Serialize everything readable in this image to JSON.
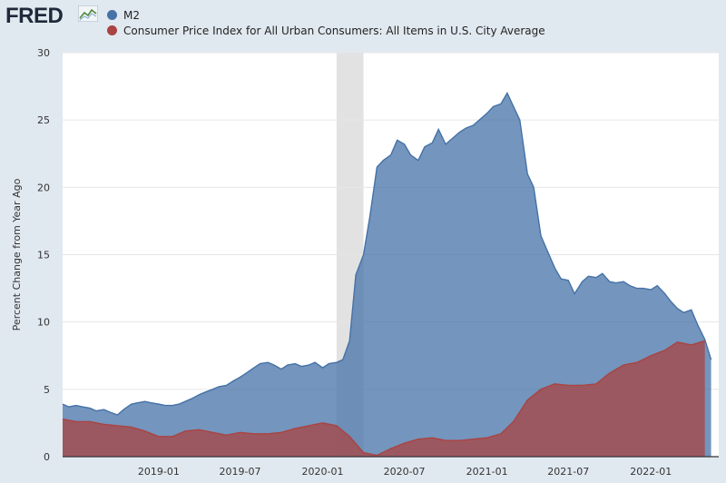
{
  "brand": {
    "name": "FRED"
  },
  "chart_data": {
    "type": "area",
    "title": "",
    "xlabel": "",
    "ylabel": "Percent Change from Year Ago",
    "ylim": [
      0,
      30
    ],
    "yticks": [
      0,
      5,
      10,
      15,
      20,
      25,
      30
    ],
    "xlim": [
      "2018-06-01",
      "2022-06-01"
    ],
    "xticks": [
      "2019-01",
      "2019-07",
      "2020-01",
      "2020-07",
      "2021-01",
      "2021-07",
      "2022-01"
    ],
    "grid": true,
    "legend": "top-left",
    "recession_shading": [
      "2020-02-01",
      "2020-04-01"
    ],
    "series": [
      {
        "name": "M2",
        "color": "#4572a7",
        "x": [
          "2018-06-01",
          "2018-06-15",
          "2018-07-01",
          "2018-07-15",
          "2018-08-01",
          "2018-08-15",
          "2018-09-01",
          "2018-09-15",
          "2018-10-01",
          "2018-10-15",
          "2018-11-01",
          "2018-11-15",
          "2018-12-01",
          "2018-12-15",
          "2019-01-01",
          "2019-01-15",
          "2019-02-01",
          "2019-02-15",
          "2019-03-01",
          "2019-03-15",
          "2019-04-01",
          "2019-04-15",
          "2019-05-01",
          "2019-05-15",
          "2019-06-01",
          "2019-06-15",
          "2019-07-01",
          "2019-07-15",
          "2019-08-01",
          "2019-08-15",
          "2019-09-01",
          "2019-09-15",
          "2019-10-01",
          "2019-10-15",
          "2019-11-01",
          "2019-11-15",
          "2019-12-01",
          "2019-12-15",
          "2020-01-01",
          "2020-01-15",
          "2020-02-01",
          "2020-02-15",
          "2020-03-01",
          "2020-03-15",
          "2020-04-01",
          "2020-04-15",
          "2020-05-01",
          "2020-05-15",
          "2020-06-01",
          "2020-06-15",
          "2020-07-01",
          "2020-07-15",
          "2020-08-01",
          "2020-08-15",
          "2020-09-01",
          "2020-09-15",
          "2020-10-01",
          "2020-10-15",
          "2020-11-01",
          "2020-11-15",
          "2020-12-01",
          "2020-12-15",
          "2021-01-01",
          "2021-01-15",
          "2021-02-01",
          "2021-02-15",
          "2021-03-01",
          "2021-03-15",
          "2021-04-01",
          "2021-04-15",
          "2021-05-01",
          "2021-05-15",
          "2021-06-01",
          "2021-06-15",
          "2021-07-01",
          "2021-07-15",
          "2021-08-01",
          "2021-08-15",
          "2021-09-01",
          "2021-09-15",
          "2021-10-01",
          "2021-10-15",
          "2021-11-01",
          "2021-11-15",
          "2021-12-01",
          "2021-12-15",
          "2022-01-01",
          "2022-01-15",
          "2022-02-01",
          "2022-02-15",
          "2022-03-01",
          "2022-03-15",
          "2022-04-01",
          "2022-04-15",
          "2022-05-01",
          "2022-05-15"
        ],
        "values": [
          3.9,
          3.7,
          3.8,
          3.7,
          3.6,
          3.4,
          3.5,
          3.3,
          3.1,
          3.5,
          3.9,
          4.0,
          4.1,
          4.0,
          3.9,
          3.8,
          3.8,
          3.9,
          4.1,
          4.3,
          4.6,
          4.8,
          5.0,
          5.2,
          5.3,
          5.6,
          5.9,
          6.2,
          6.6,
          6.9,
          7.0,
          6.8,
          6.5,
          6.8,
          6.9,
          6.7,
          6.8,
          7.0,
          6.6,
          6.9,
          7.0,
          7.2,
          8.6,
          13.5,
          15.0,
          17.8,
          21.5,
          22.0,
          22.4,
          23.5,
          23.2,
          22.4,
          22.0,
          23.0,
          23.3,
          24.3,
          23.2,
          23.6,
          24.1,
          24.4,
          24.6,
          25.0,
          25.5,
          26.0,
          26.2,
          27.0,
          26.0,
          25.0,
          21.0,
          20.0,
          16.4,
          15.3,
          14.0,
          13.2,
          13.1,
          12.1,
          13.0,
          13.4,
          13.3,
          13.6,
          13.0,
          12.9,
          13.0,
          12.7,
          12.5,
          12.5,
          12.4,
          12.7,
          12.1,
          11.5,
          11.0,
          10.7,
          10.9,
          9.8,
          8.7,
          7.2
        ]
      },
      {
        "name": "Consumer Price Index for All Urban Consumers: All Items in U.S. City Average",
        "color": "#a94442",
        "x": [
          "2018-06-01",
          "2018-07-01",
          "2018-08-01",
          "2018-09-01",
          "2018-10-01",
          "2018-11-01",
          "2018-12-01",
          "2019-01-01",
          "2019-02-01",
          "2019-03-01",
          "2019-04-01",
          "2019-05-01",
          "2019-06-01",
          "2019-07-01",
          "2019-08-01",
          "2019-09-01",
          "2019-10-01",
          "2019-11-01",
          "2019-12-01",
          "2020-01-01",
          "2020-02-01",
          "2020-03-01",
          "2020-04-01",
          "2020-05-01",
          "2020-06-01",
          "2020-07-01",
          "2020-08-01",
          "2020-09-01",
          "2020-10-01",
          "2020-11-01",
          "2020-12-01",
          "2021-01-01",
          "2021-02-01",
          "2021-03-01",
          "2021-04-01",
          "2021-05-01",
          "2021-06-01",
          "2021-07-01",
          "2021-08-01",
          "2021-09-01",
          "2021-10-01",
          "2021-11-01",
          "2021-12-01",
          "2022-01-01",
          "2022-02-01",
          "2022-03-01",
          "2022-04-01",
          "2022-05-01"
        ],
        "values": [
          2.8,
          2.6,
          2.6,
          2.4,
          2.3,
          2.2,
          1.9,
          1.5,
          1.5,
          1.9,
          2.0,
          1.8,
          1.6,
          1.8,
          1.7,
          1.7,
          1.8,
          2.1,
          2.3,
          2.5,
          2.3,
          1.5,
          0.3,
          0.1,
          0.6,
          1.0,
          1.3,
          1.4,
          1.2,
          1.2,
          1.3,
          1.4,
          1.7,
          2.6,
          4.2,
          5.0,
          5.4,
          5.3,
          5.3,
          5.4,
          6.2,
          6.8,
          7.0,
          7.5,
          7.9,
          8.5,
          8.3,
          8.6
        ]
      }
    ]
  }
}
